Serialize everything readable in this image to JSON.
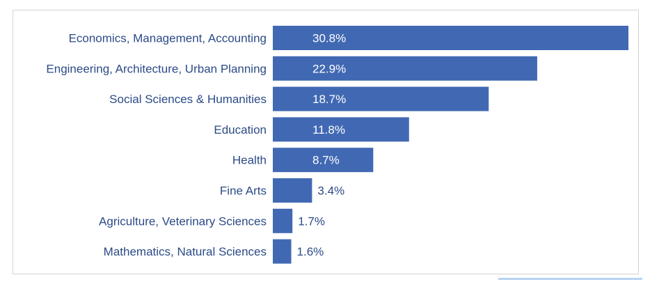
{
  "chart_data": {
    "type": "bar",
    "orientation": "horizontal",
    "categories": [
      "Economics, Management, Accounting",
      "Engineering, Architecture, Urban Planning",
      "Social Sciences & Humanities",
      "Education",
      "Health",
      "Fine Arts",
      "Agriculture, Veterinary Sciences",
      "Mathematics, Natural Sciences"
    ],
    "values": [
      30.8,
      22.9,
      18.7,
      11.8,
      8.7,
      3.4,
      1.7,
      1.6
    ],
    "value_labels": [
      "30.8%",
      "22.9%",
      "18.7%",
      "11.8%",
      "8.7%",
      "3.4%",
      "1.7%",
      "1.6%"
    ],
    "value_unit": "%",
    "xlim": [
      0,
      30.8
    ],
    "grid": false,
    "legend": "none",
    "colors": {
      "bar": "#4169b3",
      "category_text": "#2b4a86",
      "label_inside": "#ffffff",
      "label_outside": "#2b4a86"
    }
  }
}
